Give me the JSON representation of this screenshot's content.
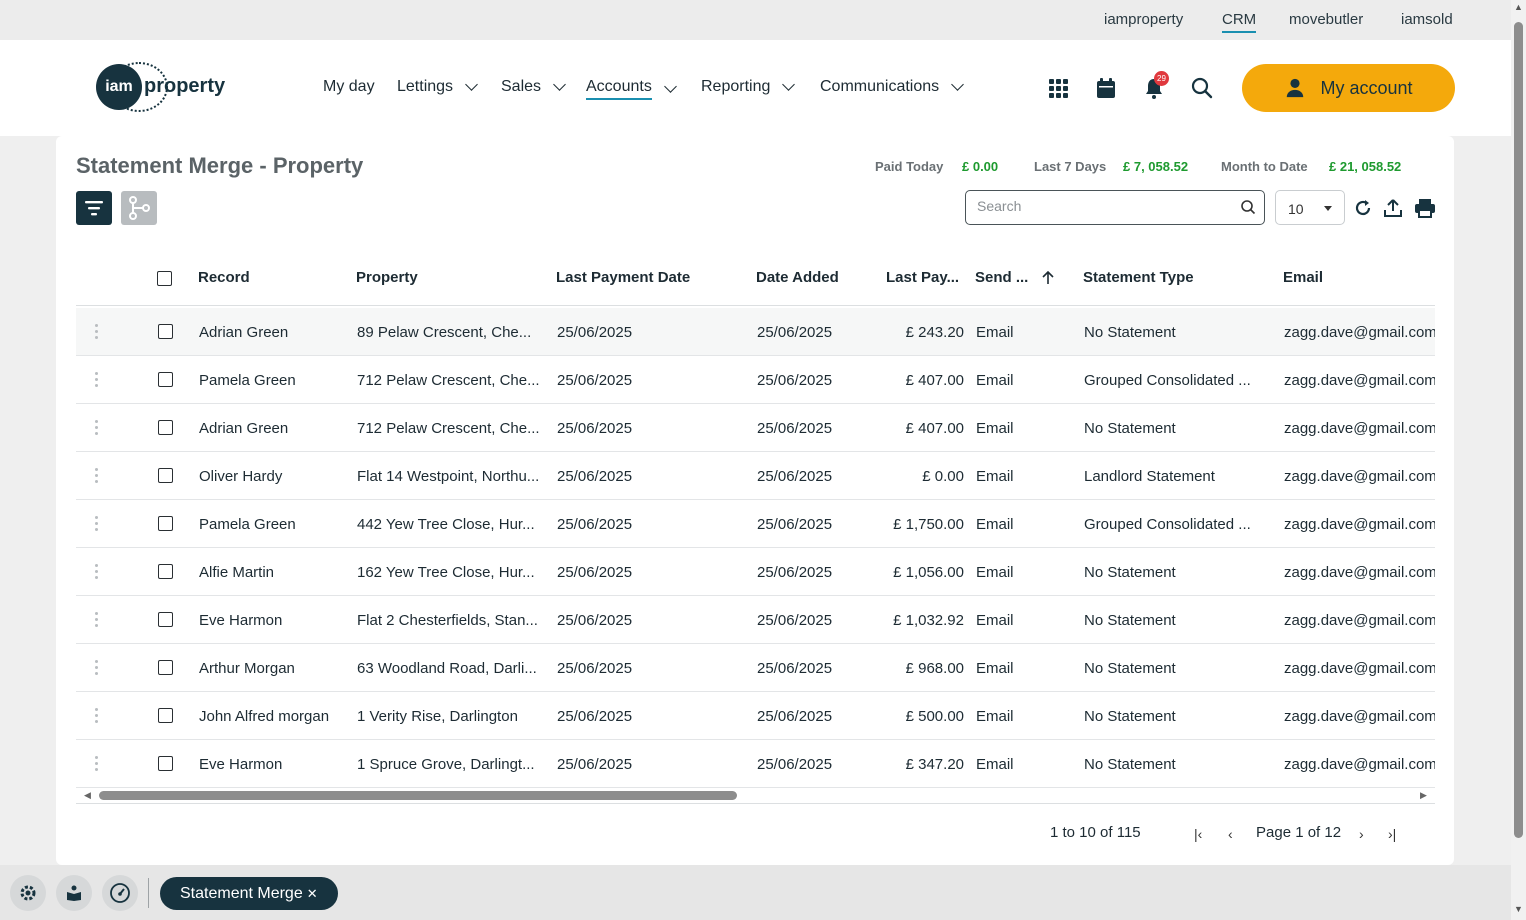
{
  "top_links": [
    {
      "label": "iamproperty"
    },
    {
      "label": "CRM"
    },
    {
      "label": "movebutler"
    },
    {
      "label": "iamsold"
    }
  ],
  "logo": {
    "mark": "iam",
    "word": "property"
  },
  "nav": [
    {
      "label": "My day"
    },
    {
      "label": "Lettings"
    },
    {
      "label": "Sales"
    },
    {
      "label": "Accounts"
    },
    {
      "label": "Reporting"
    },
    {
      "label": "Communications"
    }
  ],
  "notifications_count": "29",
  "account_button": "My account",
  "page_title": "Statement Merge - Property",
  "stats": {
    "paid_today_label": "Paid Today",
    "paid_today_value": "£ 0.00",
    "last7_label": "Last 7 Days",
    "last7_value": "£ 7, 058.52",
    "mtd_label": "Month to Date",
    "mtd_value": "£ 21, 058.52"
  },
  "search": {
    "placeholder": "Search"
  },
  "page_size": "10",
  "columns": [
    "Record",
    "Property",
    "Last Payment Date",
    "Date Added",
    "Last Pay...",
    "Send ...",
    "Statement Type",
    "Email"
  ],
  "rows": [
    {
      "record": "Adrian Green",
      "property": "89 Pelaw Crescent, Che...",
      "last_payment_date": "25/06/2025",
      "date_added": "25/06/2025",
      "last_pay": "£ 243.20",
      "send": "Email",
      "statement_type": "No Statement",
      "email": "zagg.dave@gmail.com"
    },
    {
      "record": "Pamela Green",
      "property": "712 Pelaw Crescent, Che...",
      "last_payment_date": "25/06/2025",
      "date_added": "25/06/2025",
      "last_pay": "£ 407.00",
      "send": "Email",
      "statement_type": "Grouped Consolidated ...",
      "email": "zagg.dave@gmail.com"
    },
    {
      "record": "Adrian Green",
      "property": "712 Pelaw Crescent, Che...",
      "last_payment_date": "25/06/2025",
      "date_added": "25/06/2025",
      "last_pay": "£ 407.00",
      "send": "Email",
      "statement_type": "No Statement",
      "email": "zagg.dave@gmail.com"
    },
    {
      "record": "Oliver Hardy",
      "property": "Flat 14 Westpoint, Northu...",
      "last_payment_date": "25/06/2025",
      "date_added": "25/06/2025",
      "last_pay": "£ 0.00",
      "send": "Email",
      "statement_type": "Landlord Statement",
      "email": "zagg.dave@gmail.com"
    },
    {
      "record": "Pamela Green",
      "property": "442 Yew Tree Close, Hur...",
      "last_payment_date": "25/06/2025",
      "date_added": "25/06/2025",
      "last_pay": "£ 1,750.00",
      "send": "Email",
      "statement_type": "Grouped Consolidated ...",
      "email": "zagg.dave@gmail.com"
    },
    {
      "record": "Alfie Martin",
      "property": "162 Yew Tree Close, Hur...",
      "last_payment_date": "25/06/2025",
      "date_added": "25/06/2025",
      "last_pay": "£ 1,056.00",
      "send": "Email",
      "statement_type": "No Statement",
      "email": "zagg.dave@gmail.com"
    },
    {
      "record": "Eve Harmon",
      "property": "Flat 2 Chesterfields, Stan...",
      "last_payment_date": "25/06/2025",
      "date_added": "25/06/2025",
      "last_pay": "£ 1,032.92",
      "send": "Email",
      "statement_type": "No Statement",
      "email": "zagg.dave@gmail.com"
    },
    {
      "record": "Arthur Morgan",
      "property": "63 Woodland Road, Darli...",
      "last_payment_date": "25/06/2025",
      "date_added": "25/06/2025",
      "last_pay": "£ 968.00",
      "send": "Email",
      "statement_type": "No Statement",
      "email": "zagg.dave@gmail.com"
    },
    {
      "record": "John Alfred morgan",
      "property": "1 Verity Rise, Darlington",
      "last_payment_date": "25/06/2025",
      "date_added": "25/06/2025",
      "last_pay": "£ 500.00",
      "send": "Email",
      "statement_type": "No Statement",
      "email": "zagg.dave@gmail.com"
    },
    {
      "record": "Eve Harmon",
      "property": "1 Spruce Grove, Darlingt...",
      "last_payment_date": "25/06/2025",
      "date_added": "25/06/2025",
      "last_pay": "£ 347.20",
      "send": "Email",
      "statement_type": "No Statement",
      "email": "zagg.dave@gmail.com"
    }
  ],
  "pagination": {
    "range": "1 to 10 of 115",
    "page": "Page 1 of 12"
  },
  "bottom_tab": {
    "label": "Statement Merge",
    "close": "✕"
  },
  "colors": {
    "brand_dark": "#17333f",
    "accent": "#f4a90c",
    "stat_green": "#1e9a2f",
    "link_underline": "#1a8fb0"
  },
  "icons": [
    "apps-grid-icon",
    "calendar-icon",
    "bell-icon",
    "search-icon",
    "user-icon",
    "filter-icon",
    "merge-icon",
    "refresh-icon",
    "upload-icon",
    "print-icon",
    "settings-icon",
    "book-icon",
    "gauge-icon"
  ]
}
